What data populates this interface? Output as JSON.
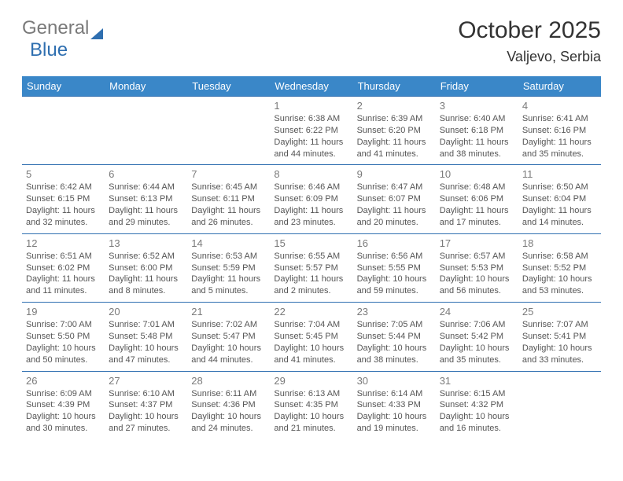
{
  "brand": {
    "part1": "General",
    "part2": "Blue"
  },
  "title": {
    "month": "October 2025",
    "location": "Valjevo, Serbia"
  },
  "colors": {
    "header_bg": "#3a87c8",
    "border": "#2f6fb0",
    "logo_gray": "#7a7a7a",
    "logo_blue": "#2f6fb0",
    "text": "#333333",
    "cell_text": "#555555",
    "daynum": "#7a7a7a",
    "background": "#ffffff"
  },
  "typography": {
    "title_fontsize": 30,
    "location_fontsize": 18,
    "header_fontsize": 13,
    "daynum_fontsize": 13,
    "info_fontsize": 11
  },
  "dayNames": [
    "Sunday",
    "Monday",
    "Tuesday",
    "Wednesday",
    "Thursday",
    "Friday",
    "Saturday"
  ],
  "weeks": [
    [
      null,
      null,
      null,
      {
        "n": "1",
        "sr": "6:38 AM",
        "ss": "6:22 PM",
        "dl": "11 hours and 44 minutes."
      },
      {
        "n": "2",
        "sr": "6:39 AM",
        "ss": "6:20 PM",
        "dl": "11 hours and 41 minutes."
      },
      {
        "n": "3",
        "sr": "6:40 AM",
        "ss": "6:18 PM",
        "dl": "11 hours and 38 minutes."
      },
      {
        "n": "4",
        "sr": "6:41 AM",
        "ss": "6:16 PM",
        "dl": "11 hours and 35 minutes."
      }
    ],
    [
      {
        "n": "5",
        "sr": "6:42 AM",
        "ss": "6:15 PM",
        "dl": "11 hours and 32 minutes."
      },
      {
        "n": "6",
        "sr": "6:44 AM",
        "ss": "6:13 PM",
        "dl": "11 hours and 29 minutes."
      },
      {
        "n": "7",
        "sr": "6:45 AM",
        "ss": "6:11 PM",
        "dl": "11 hours and 26 minutes."
      },
      {
        "n": "8",
        "sr": "6:46 AM",
        "ss": "6:09 PM",
        "dl": "11 hours and 23 minutes."
      },
      {
        "n": "9",
        "sr": "6:47 AM",
        "ss": "6:07 PM",
        "dl": "11 hours and 20 minutes."
      },
      {
        "n": "10",
        "sr": "6:48 AM",
        "ss": "6:06 PM",
        "dl": "11 hours and 17 minutes."
      },
      {
        "n": "11",
        "sr": "6:50 AM",
        "ss": "6:04 PM",
        "dl": "11 hours and 14 minutes."
      }
    ],
    [
      {
        "n": "12",
        "sr": "6:51 AM",
        "ss": "6:02 PM",
        "dl": "11 hours and 11 minutes."
      },
      {
        "n": "13",
        "sr": "6:52 AM",
        "ss": "6:00 PM",
        "dl": "11 hours and 8 minutes."
      },
      {
        "n": "14",
        "sr": "6:53 AM",
        "ss": "5:59 PM",
        "dl": "11 hours and 5 minutes."
      },
      {
        "n": "15",
        "sr": "6:55 AM",
        "ss": "5:57 PM",
        "dl": "11 hours and 2 minutes."
      },
      {
        "n": "16",
        "sr": "6:56 AM",
        "ss": "5:55 PM",
        "dl": "10 hours and 59 minutes."
      },
      {
        "n": "17",
        "sr": "6:57 AM",
        "ss": "5:53 PM",
        "dl": "10 hours and 56 minutes."
      },
      {
        "n": "18",
        "sr": "6:58 AM",
        "ss": "5:52 PM",
        "dl": "10 hours and 53 minutes."
      }
    ],
    [
      {
        "n": "19",
        "sr": "7:00 AM",
        "ss": "5:50 PM",
        "dl": "10 hours and 50 minutes."
      },
      {
        "n": "20",
        "sr": "7:01 AM",
        "ss": "5:48 PM",
        "dl": "10 hours and 47 minutes."
      },
      {
        "n": "21",
        "sr": "7:02 AM",
        "ss": "5:47 PM",
        "dl": "10 hours and 44 minutes."
      },
      {
        "n": "22",
        "sr": "7:04 AM",
        "ss": "5:45 PM",
        "dl": "10 hours and 41 minutes."
      },
      {
        "n": "23",
        "sr": "7:05 AM",
        "ss": "5:44 PM",
        "dl": "10 hours and 38 minutes."
      },
      {
        "n": "24",
        "sr": "7:06 AM",
        "ss": "5:42 PM",
        "dl": "10 hours and 35 minutes."
      },
      {
        "n": "25",
        "sr": "7:07 AM",
        "ss": "5:41 PM",
        "dl": "10 hours and 33 minutes."
      }
    ],
    [
      {
        "n": "26",
        "sr": "6:09 AM",
        "ss": "4:39 PM",
        "dl": "10 hours and 30 minutes."
      },
      {
        "n": "27",
        "sr": "6:10 AM",
        "ss": "4:37 PM",
        "dl": "10 hours and 27 minutes."
      },
      {
        "n": "28",
        "sr": "6:11 AM",
        "ss": "4:36 PM",
        "dl": "10 hours and 24 minutes."
      },
      {
        "n": "29",
        "sr": "6:13 AM",
        "ss": "4:35 PM",
        "dl": "10 hours and 21 minutes."
      },
      {
        "n": "30",
        "sr": "6:14 AM",
        "ss": "4:33 PM",
        "dl": "10 hours and 19 minutes."
      },
      {
        "n": "31",
        "sr": "6:15 AM",
        "ss": "4:32 PM",
        "dl": "10 hours and 16 minutes."
      },
      null
    ]
  ],
  "labels": {
    "sunrise": "Sunrise:",
    "sunset": "Sunset:",
    "daylight": "Daylight:"
  }
}
